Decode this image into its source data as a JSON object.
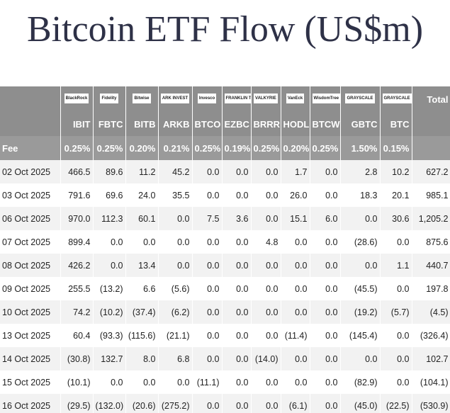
{
  "header": {
    "title": "Bitcoin ETF Flow (US$m)"
  },
  "table": {
    "logos": [
      "BlackRock",
      "Fidelity",
      "Bitwise",
      "ARK INVEST",
      "Invesco",
      "FRANKLIN TEMPLETON",
      "VALKYRIE",
      "VanEck",
      "WisdomTree",
      "GRAYSCALE",
      "GRAYSCALE"
    ],
    "total_header": "Total",
    "tickers": [
      "IBIT",
      "FBTC",
      "BITB",
      "ARKB",
      "BTCO",
      "EZBC",
      "BRRR",
      "HODL",
      "BTCW",
      "GBTC",
      "BTC"
    ],
    "fee_label": "Fee",
    "fees": [
      "0.25%",
      "0.25%",
      "0.20%",
      "0.21%",
      "0.25%",
      "0.19%",
      "0.25%",
      "0.20%",
      "0.25%",
      "1.50%",
      "0.15%"
    ],
    "rows": [
      [
        "02 Oct 2025",
        "466.5",
        "89.6",
        "11.2",
        "45.2",
        "0.0",
        "0.0",
        "0.0",
        "1.7",
        "0.0",
        "2.8",
        "10.2",
        "627.2"
      ],
      [
        "03 Oct 2025",
        "791.6",
        "69.6",
        "24.0",
        "35.5",
        "0.0",
        "0.0",
        "0.0",
        "26.0",
        "0.0",
        "18.3",
        "20.1",
        "985.1"
      ],
      [
        "06 Oct 2025",
        "970.0",
        "112.3",
        "60.1",
        "0.0",
        "7.5",
        "3.6",
        "0.0",
        "15.1",
        "6.0",
        "0.0",
        "30.6",
        "1,205.2"
      ],
      [
        "07 Oct 2025",
        "899.4",
        "0.0",
        "0.0",
        "0.0",
        "0.0",
        "0.0",
        "4.8",
        "0.0",
        "0.0",
        "(28.6)",
        "0.0",
        "875.6"
      ],
      [
        "08 Oct 2025",
        "426.2",
        "0.0",
        "13.4",
        "0.0",
        "0.0",
        "0.0",
        "0.0",
        "0.0",
        "0.0",
        "0.0",
        "1.1",
        "440.7"
      ],
      [
        "09 Oct 2025",
        "255.5",
        "(13.2)",
        "6.6",
        "(5.6)",
        "0.0",
        "0.0",
        "0.0",
        "0.0",
        "0.0",
        "(45.5)",
        "0.0",
        "197.8"
      ],
      [
        "10 Oct 2025",
        "74.2",
        "(10.2)",
        "(37.4)",
        "(6.2)",
        "0.0",
        "0.0",
        "0.0",
        "0.0",
        "0.0",
        "(19.2)",
        "(5.7)",
        "(4.5)"
      ],
      [
        "13 Oct 2025",
        "60.4",
        "(93.3)",
        "(115.6)",
        "(21.1)",
        "0.0",
        "0.0",
        "0.0",
        "(11.4)",
        "0.0",
        "(145.4)",
        "0.0",
        "(326.4)"
      ],
      [
        "14 Oct 2025",
        "(30.8)",
        "132.7",
        "8.0",
        "6.8",
        "0.0",
        "0.0",
        "(14.0)",
        "0.0",
        "0.0",
        "0.0",
        "0.0",
        "102.7"
      ],
      [
        "15 Oct 2025",
        "(10.1)",
        "0.0",
        "0.0",
        "0.0",
        "(11.1)",
        "0.0",
        "0.0",
        "0.0",
        "0.0",
        "(82.9)",
        "0.0",
        "(104.1)"
      ],
      [
        "16 Oct 2025",
        "(29.5)",
        "(132.0)",
        "(20.6)",
        "(275.2)",
        "0.0",
        "0.0",
        "0.0",
        "(6.1)",
        "0.0",
        "(45.0)",
        "(22.5)",
        "(530.9)"
      ]
    ]
  }
}
